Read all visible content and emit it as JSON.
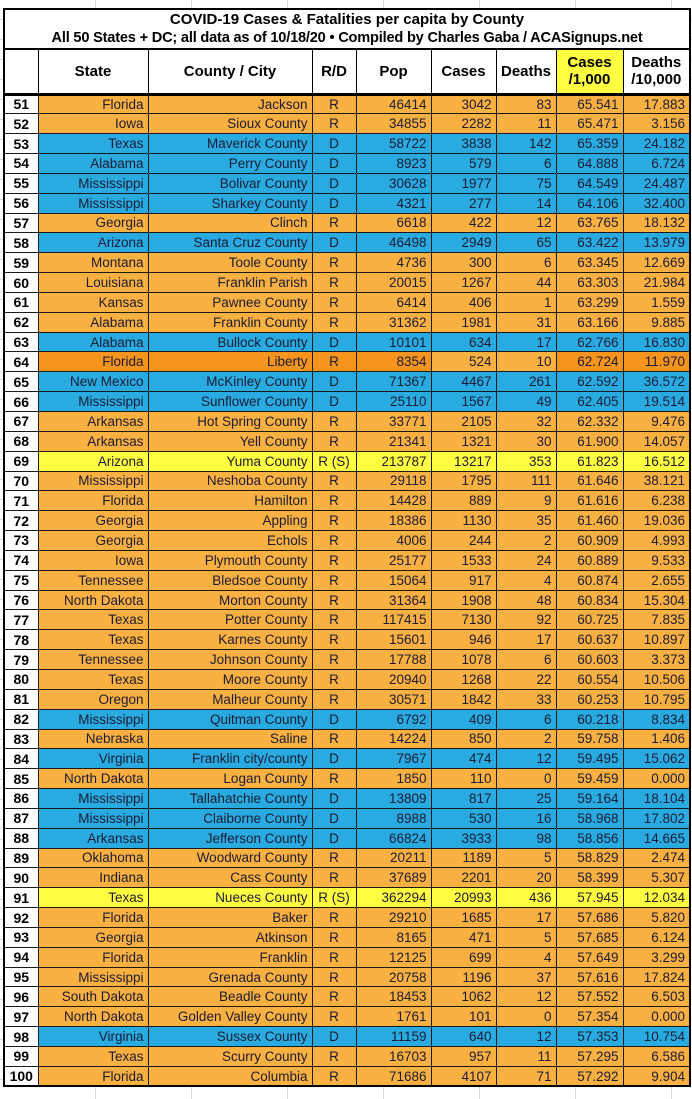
{
  "title": {
    "line1": "COVID-19 Cases & Fatalities per capita by County",
    "line2": "All 50 States + DC; all data as of 10/18/20  • Compiled by Charles Gaba / ACASignups.net"
  },
  "palette": {
    "R": "#FBB042",
    "D": "#29ABE2",
    "S": "#FFFF42",
    "F": "#F7941E",
    "header_highlight": "#FFFF42"
  },
  "columns": [
    {
      "key": "rank",
      "label": "",
      "label2": "",
      "align": "center",
      "highlight": false
    },
    {
      "key": "state",
      "label": "State",
      "label2": "",
      "align": "right",
      "highlight": false
    },
    {
      "key": "county",
      "label": "County / City",
      "label2": "",
      "align": "right",
      "highlight": false
    },
    {
      "key": "rd",
      "label": "R/D",
      "label2": "",
      "align": "center",
      "highlight": false
    },
    {
      "key": "pop",
      "label": "Pop",
      "label2": "",
      "align": "right",
      "highlight": false
    },
    {
      "key": "cases",
      "label": "Cases",
      "label2": "",
      "align": "right",
      "highlight": false
    },
    {
      "key": "deaths",
      "label": "Deaths",
      "label2": "",
      "align": "right",
      "highlight": false
    },
    {
      "key": "cases_per_1000",
      "label": "Cases",
      "label2": "/1,000",
      "align": "right",
      "highlight": true
    },
    {
      "key": "deaths_per_10000",
      "label": "Deaths",
      "label2": "/10,000",
      "align": "right",
      "highlight": false
    }
  ],
  "rows": [
    {
      "rank": 51,
      "state": "Florida",
      "county": "Jackson",
      "rd": "R",
      "pop": "46414",
      "cases": "3042",
      "deaths": "83",
      "cases_per_1000": "65.541",
      "deaths_per_10000": "17.883",
      "variant": "R"
    },
    {
      "rank": 52,
      "state": "Iowa",
      "county": "Sioux County",
      "rd": "R",
      "pop": "34855",
      "cases": "2282",
      "deaths": "11",
      "cases_per_1000": "65.471",
      "deaths_per_10000": "3.156",
      "variant": "R"
    },
    {
      "rank": 53,
      "state": "Texas",
      "county": "Maverick County",
      "rd": "D",
      "pop": "58722",
      "cases": "3838",
      "deaths": "142",
      "cases_per_1000": "65.359",
      "deaths_per_10000": "24.182",
      "variant": "D"
    },
    {
      "rank": 54,
      "state": "Alabama",
      "county": "Perry County",
      "rd": "D",
      "pop": "8923",
      "cases": "579",
      "deaths": "6",
      "cases_per_1000": "64.888",
      "deaths_per_10000": "6.724",
      "variant": "D"
    },
    {
      "rank": 55,
      "state": "Mississippi",
      "county": "Bolivar County",
      "rd": "D",
      "pop": "30628",
      "cases": "1977",
      "deaths": "75",
      "cases_per_1000": "64.549",
      "deaths_per_10000": "24.487",
      "variant": "D"
    },
    {
      "rank": 56,
      "state": "Mississippi",
      "county": "Sharkey County",
      "rd": "D",
      "pop": "4321",
      "cases": "277",
      "deaths": "14",
      "cases_per_1000": "64.106",
      "deaths_per_10000": "32.400",
      "variant": "D"
    },
    {
      "rank": 57,
      "state": "Georgia",
      "county": "Clinch",
      "rd": "R",
      "pop": "6618",
      "cases": "422",
      "deaths": "12",
      "cases_per_1000": "63.765",
      "deaths_per_10000": "18.132",
      "variant": "R"
    },
    {
      "rank": 58,
      "state": "Arizona",
      "county": "Santa Cruz County",
      "rd": "D",
      "pop": "46498",
      "cases": "2949",
      "deaths": "65",
      "cases_per_1000": "63.422",
      "deaths_per_10000": "13.979",
      "variant": "D"
    },
    {
      "rank": 59,
      "state": "Montana",
      "county": "Toole County",
      "rd": "R",
      "pop": "4736",
      "cases": "300",
      "deaths": "6",
      "cases_per_1000": "63.345",
      "deaths_per_10000": "12.669",
      "variant": "R"
    },
    {
      "rank": 60,
      "state": "Louisiana",
      "county": "Franklin Parish",
      "rd": "R",
      "pop": "20015",
      "cases": "1267",
      "deaths": "44",
      "cases_per_1000": "63.303",
      "deaths_per_10000": "21.984",
      "variant": "R"
    },
    {
      "rank": 61,
      "state": "Kansas",
      "county": "Pawnee County",
      "rd": "R",
      "pop": "6414",
      "cases": "406",
      "deaths": "1",
      "cases_per_1000": "63.299",
      "deaths_per_10000": "1.559",
      "variant": "R"
    },
    {
      "rank": 62,
      "state": "Alabama",
      "county": "Franklin County",
      "rd": "R",
      "pop": "31362",
      "cases": "1981",
      "deaths": "31",
      "cases_per_1000": "63.166",
      "deaths_per_10000": "9.885",
      "variant": "R"
    },
    {
      "rank": 63,
      "state": "Alabama",
      "county": "Bullock County",
      "rd": "D",
      "pop": "10101",
      "cases": "634",
      "deaths": "17",
      "cases_per_1000": "62.766",
      "deaths_per_10000": "16.830",
      "variant": "D"
    },
    {
      "rank": 64,
      "state": "Florida",
      "county": "Liberty",
      "rd": "R",
      "pop": "8354",
      "cases": "524",
      "deaths": "10",
      "cases_per_1000": "62.724",
      "deaths_per_10000": "11.970",
      "variant": "F",
      "overrides": {
        "cases": "R",
        "deaths": "R"
      }
    },
    {
      "rank": 65,
      "state": "New Mexico",
      "county": "McKinley County",
      "rd": "D",
      "pop": "71367",
      "cases": "4467",
      "deaths": "261",
      "cases_per_1000": "62.592",
      "deaths_per_10000": "36.572",
      "variant": "D"
    },
    {
      "rank": 66,
      "state": "Mississippi",
      "county": "Sunflower County",
      "rd": "D",
      "pop": "25110",
      "cases": "1567",
      "deaths": "49",
      "cases_per_1000": "62.405",
      "deaths_per_10000": "19.514",
      "variant": "D"
    },
    {
      "rank": 67,
      "state": "Arkansas",
      "county": "Hot Spring County",
      "rd": "R",
      "pop": "33771",
      "cases": "2105",
      "deaths": "32",
      "cases_per_1000": "62.332",
      "deaths_per_10000": "9.476",
      "variant": "R"
    },
    {
      "rank": 68,
      "state": "Arkansas",
      "county": "Yell County",
      "rd": "R",
      "pop": "21341",
      "cases": "1321",
      "deaths": "30",
      "cases_per_1000": "61.900",
      "deaths_per_10000": "14.057",
      "variant": "R"
    },
    {
      "rank": 69,
      "state": "Arizona",
      "county": "Yuma County",
      "rd": "R (S)",
      "pop": "213787",
      "cases": "13217",
      "deaths": "353",
      "cases_per_1000": "61.823",
      "deaths_per_10000": "16.512",
      "variant": "S"
    },
    {
      "rank": 70,
      "state": "Mississippi",
      "county": "Neshoba County",
      "rd": "R",
      "pop": "29118",
      "cases": "1795",
      "deaths": "111",
      "cases_per_1000": "61.646",
      "deaths_per_10000": "38.121",
      "variant": "R"
    },
    {
      "rank": 71,
      "state": "Florida",
      "county": "Hamilton",
      "rd": "R",
      "pop": "14428",
      "cases": "889",
      "deaths": "9",
      "cases_per_1000": "61.616",
      "deaths_per_10000": "6.238",
      "variant": "R"
    },
    {
      "rank": 72,
      "state": "Georgia",
      "county": "Appling",
      "rd": "R",
      "pop": "18386",
      "cases": "1130",
      "deaths": "35",
      "cases_per_1000": "61.460",
      "deaths_per_10000": "19.036",
      "variant": "R"
    },
    {
      "rank": 73,
      "state": "Georgia",
      "county": "Echols",
      "rd": "R",
      "pop": "4006",
      "cases": "244",
      "deaths": "2",
      "cases_per_1000": "60.909",
      "deaths_per_10000": "4.993",
      "variant": "R"
    },
    {
      "rank": 74,
      "state": "Iowa",
      "county": "Plymouth County",
      "rd": "R",
      "pop": "25177",
      "cases": "1533",
      "deaths": "24",
      "cases_per_1000": "60.889",
      "deaths_per_10000": "9.533",
      "variant": "R"
    },
    {
      "rank": 75,
      "state": "Tennessee",
      "county": "Bledsoe County",
      "rd": "R",
      "pop": "15064",
      "cases": "917",
      "deaths": "4",
      "cases_per_1000": "60.874",
      "deaths_per_10000": "2.655",
      "variant": "R"
    },
    {
      "rank": 76,
      "state": "North Dakota",
      "county": "Morton County",
      "rd": "R",
      "pop": "31364",
      "cases": "1908",
      "deaths": "48",
      "cases_per_1000": "60.834",
      "deaths_per_10000": "15.304",
      "variant": "R"
    },
    {
      "rank": 77,
      "state": "Texas",
      "county": "Potter County",
      "rd": "R",
      "pop": "117415",
      "cases": "7130",
      "deaths": "92",
      "cases_per_1000": "60.725",
      "deaths_per_10000": "7.835",
      "variant": "R"
    },
    {
      "rank": 78,
      "state": "Texas",
      "county": "Karnes County",
      "rd": "R",
      "pop": "15601",
      "cases": "946",
      "deaths": "17",
      "cases_per_1000": "60.637",
      "deaths_per_10000": "10.897",
      "variant": "R"
    },
    {
      "rank": 79,
      "state": "Tennessee",
      "county": "Johnson County",
      "rd": "R",
      "pop": "17788",
      "cases": "1078",
      "deaths": "6",
      "cases_per_1000": "60.603",
      "deaths_per_10000": "3.373",
      "variant": "R"
    },
    {
      "rank": 80,
      "state": "Texas",
      "county": "Moore County",
      "rd": "R",
      "pop": "20940",
      "cases": "1268",
      "deaths": "22",
      "cases_per_1000": "60.554",
      "deaths_per_10000": "10.506",
      "variant": "R"
    },
    {
      "rank": 81,
      "state": "Oregon",
      "county": "Malheur County",
      "rd": "R",
      "pop": "30571",
      "cases": "1842",
      "deaths": "33",
      "cases_per_1000": "60.253",
      "deaths_per_10000": "10.795",
      "variant": "R"
    },
    {
      "rank": 82,
      "state": "Mississippi",
      "county": "Quitman County",
      "rd": "D",
      "pop": "6792",
      "cases": "409",
      "deaths": "6",
      "cases_per_1000": "60.218",
      "deaths_per_10000": "8.834",
      "variant": "D"
    },
    {
      "rank": 83,
      "state": "Nebraska",
      "county": "Saline",
      "rd": "R",
      "pop": "14224",
      "cases": "850",
      "deaths": "2",
      "cases_per_1000": "59.758",
      "deaths_per_10000": "1.406",
      "variant": "R"
    },
    {
      "rank": 84,
      "state": "Virginia",
      "county": "Franklin city/county",
      "rd": "D",
      "pop": "7967",
      "cases": "474",
      "deaths": "12",
      "cases_per_1000": "59.495",
      "deaths_per_10000": "15.062",
      "variant": "D"
    },
    {
      "rank": 85,
      "state": "North Dakota",
      "county": "Logan County",
      "rd": "R",
      "pop": "1850",
      "cases": "110",
      "deaths": "0",
      "cases_per_1000": "59.459",
      "deaths_per_10000": "0.000",
      "variant": "R"
    },
    {
      "rank": 86,
      "state": "Mississippi",
      "county": "Tallahatchie County",
      "rd": "D",
      "pop": "13809",
      "cases": "817",
      "deaths": "25",
      "cases_per_1000": "59.164",
      "deaths_per_10000": "18.104",
      "variant": "D"
    },
    {
      "rank": 87,
      "state": "Mississippi",
      "county": "Claiborne County",
      "rd": "D",
      "pop": "8988",
      "cases": "530",
      "deaths": "16",
      "cases_per_1000": "58.968",
      "deaths_per_10000": "17.802",
      "variant": "D"
    },
    {
      "rank": 88,
      "state": "Arkansas",
      "county": "Jefferson County",
      "rd": "D",
      "pop": "66824",
      "cases": "3933",
      "deaths": "98",
      "cases_per_1000": "58.856",
      "deaths_per_10000": "14.665",
      "variant": "D"
    },
    {
      "rank": 89,
      "state": "Oklahoma",
      "county": "Woodward County",
      "rd": "R",
      "pop": "20211",
      "cases": "1189",
      "deaths": "5",
      "cases_per_1000": "58.829",
      "deaths_per_10000": "2.474",
      "variant": "R"
    },
    {
      "rank": 90,
      "state": "Indiana",
      "county": "Cass County",
      "rd": "R",
      "pop": "37689",
      "cases": "2201",
      "deaths": "20",
      "cases_per_1000": "58.399",
      "deaths_per_10000": "5.307",
      "variant": "R"
    },
    {
      "rank": 91,
      "state": "Texas",
      "county": "Nueces County",
      "rd": "R (S)",
      "pop": "362294",
      "cases": "20993",
      "deaths": "436",
      "cases_per_1000": "57.945",
      "deaths_per_10000": "12.034",
      "variant": "S"
    },
    {
      "rank": 92,
      "state": "Florida",
      "county": "Baker",
      "rd": "R",
      "pop": "29210",
      "cases": "1685",
      "deaths": "17",
      "cases_per_1000": "57.686",
      "deaths_per_10000": "5.820",
      "variant": "R"
    },
    {
      "rank": 93,
      "state": "Georgia",
      "county": "Atkinson",
      "rd": "R",
      "pop": "8165",
      "cases": "471",
      "deaths": "5",
      "cases_per_1000": "57.685",
      "deaths_per_10000": "6.124",
      "variant": "R"
    },
    {
      "rank": 94,
      "state": "Florida",
      "county": "Franklin",
      "rd": "R",
      "pop": "12125",
      "cases": "699",
      "deaths": "4",
      "cases_per_1000": "57.649",
      "deaths_per_10000": "3.299",
      "variant": "R"
    },
    {
      "rank": 95,
      "state": "Mississippi",
      "county": "Grenada County",
      "rd": "R",
      "pop": "20758",
      "cases": "1196",
      "deaths": "37",
      "cases_per_1000": "57.616",
      "deaths_per_10000": "17.824",
      "variant": "R"
    },
    {
      "rank": 96,
      "state": "South Dakota",
      "county": "Beadle County",
      "rd": "R",
      "pop": "18453",
      "cases": "1062",
      "deaths": "12",
      "cases_per_1000": "57.552",
      "deaths_per_10000": "6.503",
      "variant": "R"
    },
    {
      "rank": 97,
      "state": "North Dakota",
      "county": "Golden Valley County",
      "rd": "R",
      "pop": "1761",
      "cases": "101",
      "deaths": "0",
      "cases_per_1000": "57.354",
      "deaths_per_10000": "0.000",
      "variant": "R"
    },
    {
      "rank": 98,
      "state": "Virginia",
      "county": "Sussex County",
      "rd": "D",
      "pop": "11159",
      "cases": "640",
      "deaths": "12",
      "cases_per_1000": "57.353",
      "deaths_per_10000": "10.754",
      "variant": "D"
    },
    {
      "rank": 99,
      "state": "Texas",
      "county": "Scurry County",
      "rd": "R",
      "pop": "16703",
      "cases": "957",
      "deaths": "11",
      "cases_per_1000": "57.295",
      "deaths_per_10000": "6.586",
      "variant": "R"
    },
    {
      "rank": 100,
      "state": "Florida",
      "county": "Columbia",
      "rd": "R",
      "pop": "71686",
      "cases": "4107",
      "deaths": "71",
      "cases_per_1000": "57.292",
      "deaths_per_10000": "9.904",
      "variant": "R"
    }
  ]
}
